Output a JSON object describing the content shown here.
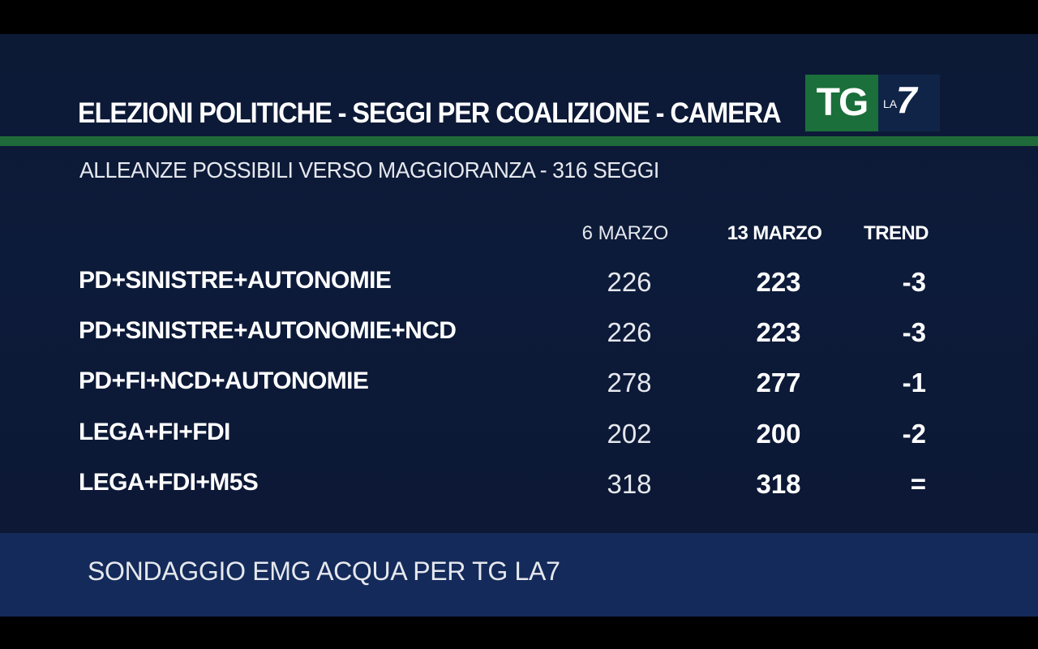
{
  "header": {
    "title": "ELEZIONI POLITICHE - SEGGI PER COALIZIONE - CAMERA",
    "subtitle": "ALLEANZE POSSIBILI VERSO MAGGIORANZA - 316 SEGGI"
  },
  "logo": {
    "tg": "TG",
    "la": "LA",
    "seven": "7"
  },
  "table": {
    "columns": [
      "6 MARZO",
      "13 MARZO",
      "TREND"
    ],
    "rows": [
      {
        "name": "PD+SINISTRE+AUTONOMIE",
        "v1": "226",
        "v2": "223",
        "trend": "-3"
      },
      {
        "name": "PD+SINISTRE+AUTONOMIE+NCD",
        "v1": "226",
        "v2": "223",
        "trend": "-3"
      },
      {
        "name": "PD+FI+NCD+AUTONOMIE",
        "v1": "278",
        "v2": "277",
        "trend": "-1"
      },
      {
        "name": "LEGA+FI+FDI",
        "v1": "202",
        "v2": "200",
        "trend": "-2"
      },
      {
        "name": "LEGA+FDI+M5S",
        "v1": "318",
        "v2": "318",
        "trend": "="
      }
    ]
  },
  "footer": {
    "source": "SONDAGGIO EMG ACQUA PER TG LA7"
  },
  "colors": {
    "background": "#0c1a36",
    "accent_green": "#1f6a3a",
    "footer_band": "#132a5a"
  }
}
